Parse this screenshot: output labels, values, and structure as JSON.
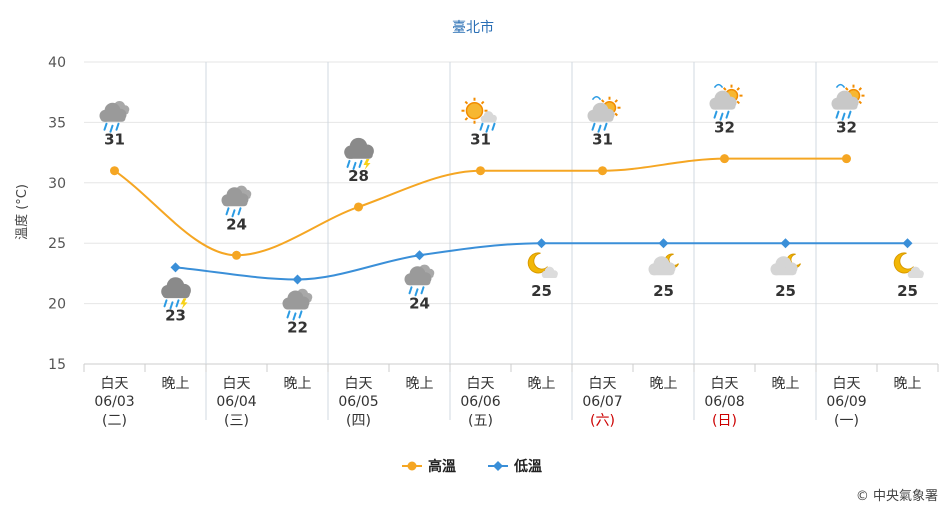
{
  "chart_data": {
    "type": "line",
    "title": "臺北市",
    "ylabel": "溫度 (°C)",
    "ylim": [
      15,
      40
    ],
    "yticks": [
      15,
      20,
      25,
      30,
      35,
      40
    ],
    "categories": [
      {
        "period": "白天",
        "date": "06/03",
        "weekday": "(二)",
        "weekend": false
      },
      {
        "period": "晚上"
      },
      {
        "period": "白天",
        "date": "06/04",
        "weekday": "(三)",
        "weekend": false
      },
      {
        "period": "晚上"
      },
      {
        "period": "白天",
        "date": "06/05",
        "weekday": "(四)",
        "weekend": false
      },
      {
        "period": "晚上"
      },
      {
        "period": "白天",
        "date": "06/06",
        "weekday": "(五)",
        "weekend": false
      },
      {
        "period": "晚上"
      },
      {
        "period": "白天",
        "date": "06/07",
        "weekday": "(六)",
        "weekend": true
      },
      {
        "period": "晚上"
      },
      {
        "period": "白天",
        "date": "06/08",
        "weekday": "(日)",
        "weekend": true
      },
      {
        "period": "晚上"
      },
      {
        "period": "白天",
        "date": "06/09",
        "weekday": "(一)",
        "weekend": false
      },
      {
        "period": "晚上"
      }
    ],
    "series": [
      {
        "name": "高溫",
        "color": "#f5a623",
        "marker": "circle",
        "points": [
          {
            "slot": 0,
            "value": 31,
            "icon": "cloudy-rain-icon"
          },
          {
            "slot": 2,
            "value": 24,
            "icon": "cloudy-rain-icon"
          },
          {
            "slot": 4,
            "value": 28,
            "icon": "thunder-rain-icon"
          },
          {
            "slot": 6,
            "value": 31,
            "icon": "sunny-cloudy-rain-icon"
          },
          {
            "slot": 8,
            "value": 31,
            "icon": "partly-cloudy-rain-icon"
          },
          {
            "slot": 10,
            "value": 32,
            "icon": "partly-cloudy-rain-icon"
          },
          {
            "slot": 12,
            "value": 32,
            "icon": "partly-cloudy-rain-icon"
          }
        ]
      },
      {
        "name": "低溫",
        "color": "#3a8fd8",
        "marker": "diamond",
        "points": [
          {
            "slot": 1,
            "value": 23,
            "icon": "thunder-rain-icon"
          },
          {
            "slot": 3,
            "value": 22,
            "icon": "cloudy-rain-icon"
          },
          {
            "slot": 5,
            "value": 24,
            "icon": "cloudy-rain-icon"
          },
          {
            "slot": 7,
            "value": 25,
            "icon": "moon-cloud-icon"
          },
          {
            "slot": 9,
            "value": 25,
            "icon": "cloud-moon-icon"
          },
          {
            "slot": 11,
            "value": 25,
            "icon": "cloud-moon-icon"
          },
          {
            "slot": 13,
            "value": 25,
            "icon": "moon-cloud-icon"
          }
        ]
      }
    ],
    "legend_position": "bottom-center",
    "grid": true,
    "credit": "© 中央氣象署"
  }
}
